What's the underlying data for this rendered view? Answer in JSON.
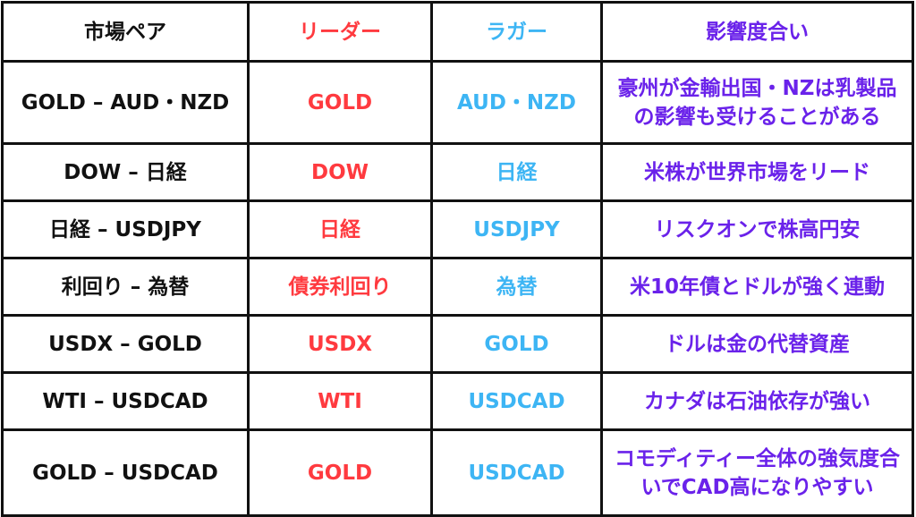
{
  "colors": {
    "pair": "#111111",
    "leader": "#ff3a3f",
    "lagger": "#3db5f4",
    "degree": "#6a22ea",
    "border": "#111111"
  },
  "header": [
    "市場ペア",
    "リーダー",
    "ラガー",
    "影響度合い"
  ],
  "rows": [
    [
      "GOLD – AUD・NZD",
      "GOLD",
      "AUD・NZD",
      "豪州が金輸出国・NZは乳製品の影響も受けることがある"
    ],
    [
      "DOW – 日経",
      "DOW",
      "日経",
      "米株が世界市場をリード"
    ],
    [
      "日経 – USDJPY",
      "日経",
      "USDJPY",
      "リスクオンで株高円安"
    ],
    [
      "利回り – 為替",
      "債券利回り",
      "為替",
      "米10年債とドルが強く連動"
    ],
    [
      "USDX – GOLD",
      "USDX",
      "GOLD",
      "ドルは金の代替資産"
    ],
    [
      "WTI – USDCAD",
      "WTI",
      "USDCAD",
      "カナダは石油依存が強い"
    ],
    [
      "GOLD – USDCAD",
      "GOLD",
      "USDCAD",
      "コモディティー全体の強気度合いでCAD高になりやすい"
    ]
  ]
}
